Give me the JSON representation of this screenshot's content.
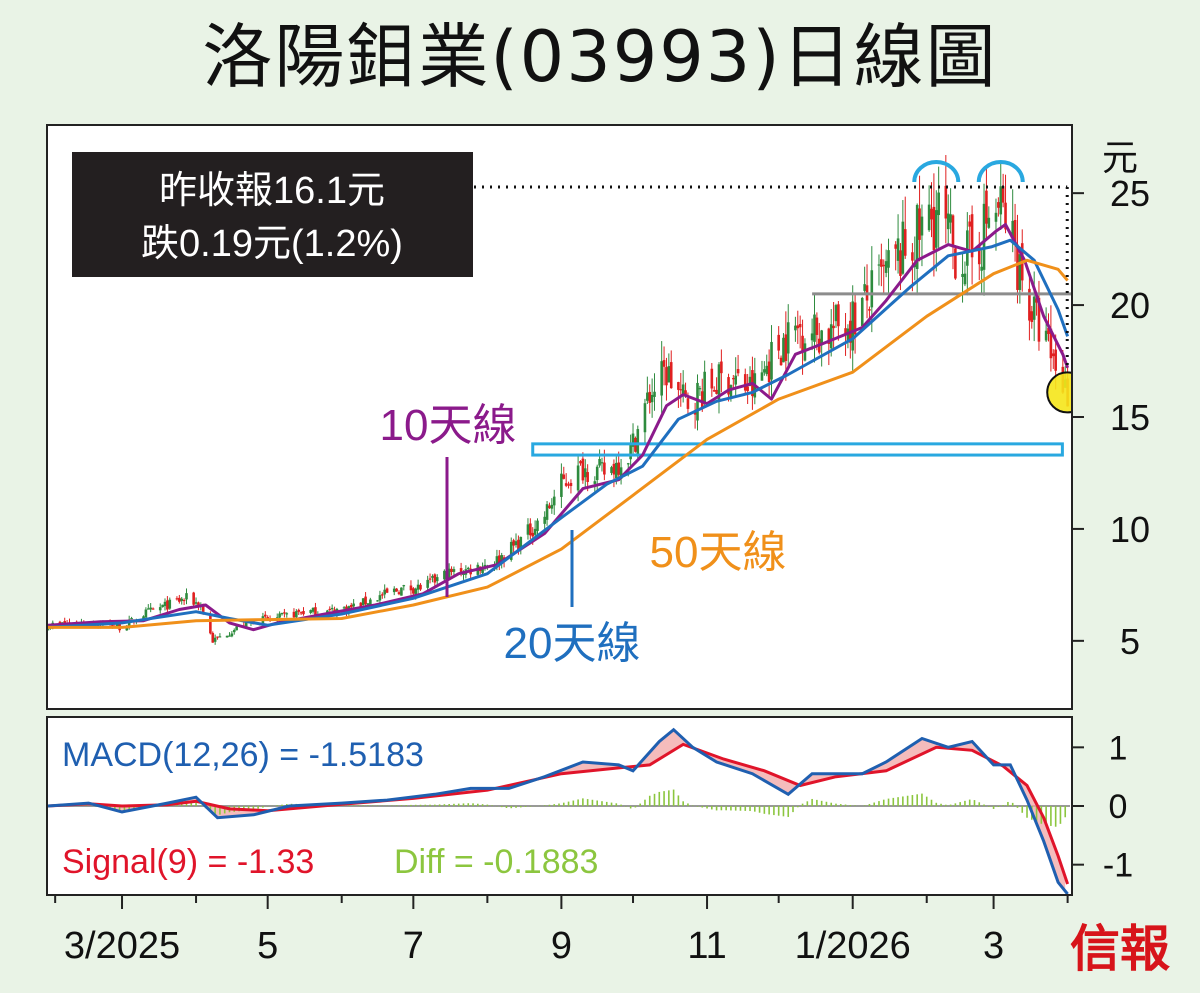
{
  "title": "洛陽鉬業(03993)日線圖",
  "info_box": {
    "line1": "昨收報16.1元",
    "line2": "跌0.19元(1.2%)"
  },
  "publisher_logo": "信報",
  "colors": {
    "candle_up": "#2e8b3e",
    "candle_down": "#e02020",
    "ma10": "#8b1a8b",
    "ma20": "#1f6fbf",
    "ma50": "#f0901a",
    "macd": "#1f5fb0",
    "signal": "#e0142a",
    "diff": "#8cc63f",
    "support_box": "#29a8e0",
    "resistance_line": "#8c8c8c",
    "double_top_arcs": "#29a8e0",
    "highlight_circle": "#f5e61a"
  },
  "chart_data": [
    {
      "type": "candlestick",
      "y_unit_label": "元",
      "ylim": [
        2,
        28
      ],
      "yticks": [
        5,
        10,
        15,
        20,
        25
      ],
      "x_tick_labels": [
        "3/2025",
        "5",
        "7",
        "9",
        "11",
        "1/2026",
        "3"
      ],
      "x_tick_dates": [
        "2025-03-01",
        "2025-05-01",
        "2025-07-01",
        "2025-09-01",
        "2025-11-01",
        "2026-01-01",
        "2026-03-01"
      ],
      "x_range": [
        "2025-01-29",
        "2026-04-02"
      ],
      "close_series": [
        [
          "2025-01-29",
          5.7
        ],
        [
          "2025-02-10",
          5.8
        ],
        [
          "2025-02-20",
          5.8
        ],
        [
          "2025-03-01",
          5.6
        ],
        [
          "2025-03-10",
          6.2
        ],
        [
          "2025-03-20",
          6.6
        ],
        [
          "2025-03-28",
          6.9
        ],
        [
          "2025-04-03",
          6.6
        ],
        [
          "2025-04-08",
          5.0
        ],
        [
          "2025-04-15",
          5.4
        ],
        [
          "2025-04-25",
          5.9
        ],
        [
          "2025-05-05",
          6.0
        ],
        [
          "2025-05-15",
          6.3
        ],
        [
          "2025-05-25",
          6.3
        ],
        [
          "2025-06-05",
          6.5
        ],
        [
          "2025-06-15",
          6.9
        ],
        [
          "2025-06-25",
          7.3
        ],
        [
          "2025-07-05",
          7.4
        ],
        [
          "2025-07-15",
          8.0
        ],
        [
          "2025-07-25",
          8.2
        ],
        [
          "2025-08-05",
          8.6
        ],
        [
          "2025-08-15",
          9.5
        ],
        [
          "2025-08-25",
          10.6
        ],
        [
          "2025-09-01",
          12.0
        ],
        [
          "2025-09-10",
          12.7
        ],
        [
          "2025-09-20",
          12.5
        ],
        [
          "2025-09-30",
          13.5
        ],
        [
          "2025-10-08",
          16.0
        ],
        [
          "2025-10-15",
          17.0
        ],
        [
          "2025-10-23",
          15.6
        ],
        [
          "2025-11-01",
          16.3
        ],
        [
          "2025-11-10",
          16.8
        ],
        [
          "2025-11-20",
          16.2
        ],
        [
          "2025-12-01",
          18.2
        ],
        [
          "2025-12-10",
          19.0
        ],
        [
          "2025-12-20",
          18.7
        ],
        [
          "2026-01-01",
          19.4
        ],
        [
          "2026-01-10",
          20.6
        ],
        [
          "2026-01-20",
          22.1
        ],
        [
          "2026-01-28",
          23.0
        ],
        [
          "2026-02-05",
          24.2
        ],
        [
          "2026-02-12",
          22.5
        ],
        [
          "2026-02-20",
          22.1
        ],
        [
          "2026-02-27",
          23.9
        ],
        [
          "2026-03-04",
          24.3
        ],
        [
          "2026-03-10",
          22.5
        ],
        [
          "2026-03-16",
          20.0
        ],
        [
          "2026-03-22",
          18.5
        ],
        [
          "2026-03-27",
          17.3
        ],
        [
          "2026-04-01",
          16.1
        ]
      ],
      "ma_series": [
        {
          "name": "10天線",
          "color": "#8b1a8b",
          "points": [
            [
              "2025-01-29",
              5.7
            ],
            [
              "2025-02-20",
              5.85
            ],
            [
              "2025-03-10",
              5.9
            ],
            [
              "2025-03-25",
              6.4
            ],
            [
              "2025-04-05",
              6.6
            ],
            [
              "2025-04-15",
              5.8
            ],
            [
              "2025-04-25",
              5.5
            ],
            [
              "2025-05-05",
              5.8
            ],
            [
              "2025-05-25",
              6.2
            ],
            [
              "2025-06-15",
              6.6
            ],
            [
              "2025-07-05",
              7.1
            ],
            [
              "2025-07-20",
              8.0
            ],
            [
              "2025-08-05",
              8.4
            ],
            [
              "2025-08-25",
              9.8
            ],
            [
              "2025-09-10",
              11.8
            ],
            [
              "2025-09-25",
              12.2
            ],
            [
              "2025-10-05",
              13.3
            ],
            [
              "2025-10-15",
              15.5
            ],
            [
              "2025-10-22",
              16.0
            ],
            [
              "2025-11-01",
              15.6
            ],
            [
              "2025-11-10",
              16.2
            ],
            [
              "2025-11-20",
              16.5
            ],
            [
              "2025-11-28",
              15.8
            ],
            [
              "2025-12-08",
              17.8
            ],
            [
              "2025-12-20",
              18.3
            ],
            [
              "2026-01-05",
              19.0
            ],
            [
              "2026-01-15",
              20.2
            ],
            [
              "2026-01-28",
              22.0
            ],
            [
              "2026-02-10",
              22.7
            ],
            [
              "2026-02-20",
              22.4
            ],
            [
              "2026-03-02",
              23.3
            ],
            [
              "2026-03-06",
              23.6
            ],
            [
              "2026-03-14",
              22.0
            ],
            [
              "2026-03-22",
              19.5
            ],
            [
              "2026-03-30",
              17.8
            ],
            [
              "2026-04-01",
              17.2
            ]
          ]
        },
        {
          "name": "20天線",
          "color": "#1f6fbf",
          "points": [
            [
              "2025-01-29",
              5.6
            ],
            [
              "2025-03-01",
              5.8
            ],
            [
              "2025-04-01",
              6.3
            ],
            [
              "2025-04-15",
              6.0
            ],
            [
              "2025-05-01",
              5.7
            ],
            [
              "2025-06-01",
              6.2
            ],
            [
              "2025-07-01",
              6.9
            ],
            [
              "2025-08-01",
              8.0
            ],
            [
              "2025-09-01",
              10.5
            ],
            [
              "2025-09-20",
              12.0
            ],
            [
              "2025-10-05",
              12.8
            ],
            [
              "2025-10-20",
              14.9
            ],
            [
              "2025-11-05",
              15.7
            ],
            [
              "2025-11-20",
              16.1
            ],
            [
              "2025-12-05",
              16.9
            ],
            [
              "2026-01-01",
              18.5
            ],
            [
              "2026-01-25",
              20.8
            ],
            [
              "2026-02-10",
              22.2
            ],
            [
              "2026-02-28",
              22.6
            ],
            [
              "2026-03-08",
              22.9
            ],
            [
              "2026-03-18",
              22.0
            ],
            [
              "2026-03-28",
              19.8
            ],
            [
              "2026-04-01",
              18.6
            ]
          ]
        },
        {
          "name": "50天線",
          "color": "#f0901a",
          "points": [
            [
              "2025-01-29",
              5.6
            ],
            [
              "2025-03-01",
              5.6
            ],
            [
              "2025-04-01",
              5.9
            ],
            [
              "2025-05-01",
              5.95
            ],
            [
              "2025-06-01",
              6.0
            ],
            [
              "2025-07-01",
              6.6
            ],
            [
              "2025-08-01",
              7.4
            ],
            [
              "2025-09-01",
              9.1
            ],
            [
              "2025-10-01",
              11.5
            ],
            [
              "2025-11-01",
              14.0
            ],
            [
              "2025-12-01",
              15.8
            ],
            [
              "2026-01-01",
              17.0
            ],
            [
              "2026-02-01",
              19.5
            ],
            [
              "2026-03-01",
              21.4
            ],
            [
              "2026-03-15",
              22.0
            ],
            [
              "2026-03-28",
              21.6
            ],
            [
              "2026-04-01",
              21.1
            ]
          ]
        }
      ],
      "annotations": {
        "ma_labels": [
          "10天線",
          "20天線",
          "50天線"
        ],
        "support_zone": {
          "from": "2025-08-20",
          "to": "2026-04-03",
          "low": 13.3,
          "high": 13.8
        },
        "resistance_line": {
          "from": "2025-12-15",
          "to": "2026-04-03",
          "value": 20.5
        },
        "last_close_marker": {
          "x": "2026-03-31",
          "y": 16.1
        },
        "double_top_peaks": [
          "2026-02-05",
          "2026-03-04"
        ]
      }
    },
    {
      "type": "macd",
      "ylim": [
        -1.5,
        1.5
      ],
      "yticks": [
        -1,
        0,
        1
      ],
      "x_range": [
        "2025-01-29",
        "2026-04-02"
      ],
      "labels": {
        "macd": "MACD(12,26) = -1.5183",
        "signal": "Signal(9) = -1.33",
        "diff": "Diff = -0.1883"
      },
      "series": [
        {
          "name": "MACD",
          "points": [
            [
              "2025-01-29",
              0.0
            ],
            [
              "2025-02-15",
              0.05
            ],
            [
              "2025-03-01",
              -0.1
            ],
            [
              "2025-03-20",
              0.05
            ],
            [
              "2025-04-01",
              0.15
            ],
            [
              "2025-04-10",
              -0.2
            ],
            [
              "2025-04-25",
              -0.15
            ],
            [
              "2025-05-10",
              0.0
            ],
            [
              "2025-06-01",
              0.05
            ],
            [
              "2025-06-20",
              0.1
            ],
            [
              "2025-07-10",
              0.2
            ],
            [
              "2025-07-25",
              0.3
            ],
            [
              "2025-08-10",
              0.3
            ],
            [
              "2025-08-25",
              0.5
            ],
            [
              "2025-09-10",
              0.75
            ],
            [
              "2025-09-25",
              0.7
            ],
            [
              "2025-10-01",
              0.6
            ],
            [
              "2025-10-12",
              1.1
            ],
            [
              "2025-10-18",
              1.3
            ],
            [
              "2025-10-26",
              1.0
            ],
            [
              "2025-11-05",
              0.75
            ],
            [
              "2025-11-20",
              0.55
            ],
            [
              "2025-12-05",
              0.2
            ],
            [
              "2025-12-15",
              0.55
            ],
            [
              "2026-01-05",
              0.55
            ],
            [
              "2026-01-15",
              0.75
            ],
            [
              "2026-01-30",
              1.15
            ],
            [
              "2026-02-10",
              1.0
            ],
            [
              "2026-02-20",
              1.1
            ],
            [
              "2026-03-01",
              0.7
            ],
            [
              "2026-03-08",
              0.7
            ],
            [
              "2026-03-15",
              0.1
            ],
            [
              "2026-03-22",
              -0.6
            ],
            [
              "2026-03-28",
              -1.3
            ],
            [
              "2026-04-01",
              -1.5
            ]
          ]
        },
        {
          "name": "Signal",
          "points": [
            [
              "2025-01-29",
              0.0
            ],
            [
              "2025-02-15",
              0.04
            ],
            [
              "2025-03-01",
              0.0
            ],
            [
              "2025-03-20",
              0.02
            ],
            [
              "2025-04-01",
              0.08
            ],
            [
              "2025-04-15",
              -0.05
            ],
            [
              "2025-05-01",
              -0.08
            ],
            [
              "2025-06-01",
              0.03
            ],
            [
              "2025-07-01",
              0.13
            ],
            [
              "2025-08-01",
              0.27
            ],
            [
              "2025-09-01",
              0.55
            ],
            [
              "2025-09-25",
              0.65
            ],
            [
              "2025-10-08",
              0.7
            ],
            [
              "2025-10-22",
              1.05
            ],
            [
              "2025-11-08",
              0.8
            ],
            [
              "2025-11-25",
              0.6
            ],
            [
              "2025-12-10",
              0.35
            ],
            [
              "2025-12-25",
              0.5
            ],
            [
              "2026-01-15",
              0.6
            ],
            [
              "2026-02-05",
              1.0
            ],
            [
              "2026-02-20",
              0.95
            ],
            [
              "2026-03-05",
              0.68
            ],
            [
              "2026-03-15",
              0.35
            ],
            [
              "2026-03-22",
              -0.2
            ],
            [
              "2026-03-28",
              -0.85
            ],
            [
              "2026-04-01",
              -1.33
            ]
          ]
        }
      ]
    }
  ]
}
